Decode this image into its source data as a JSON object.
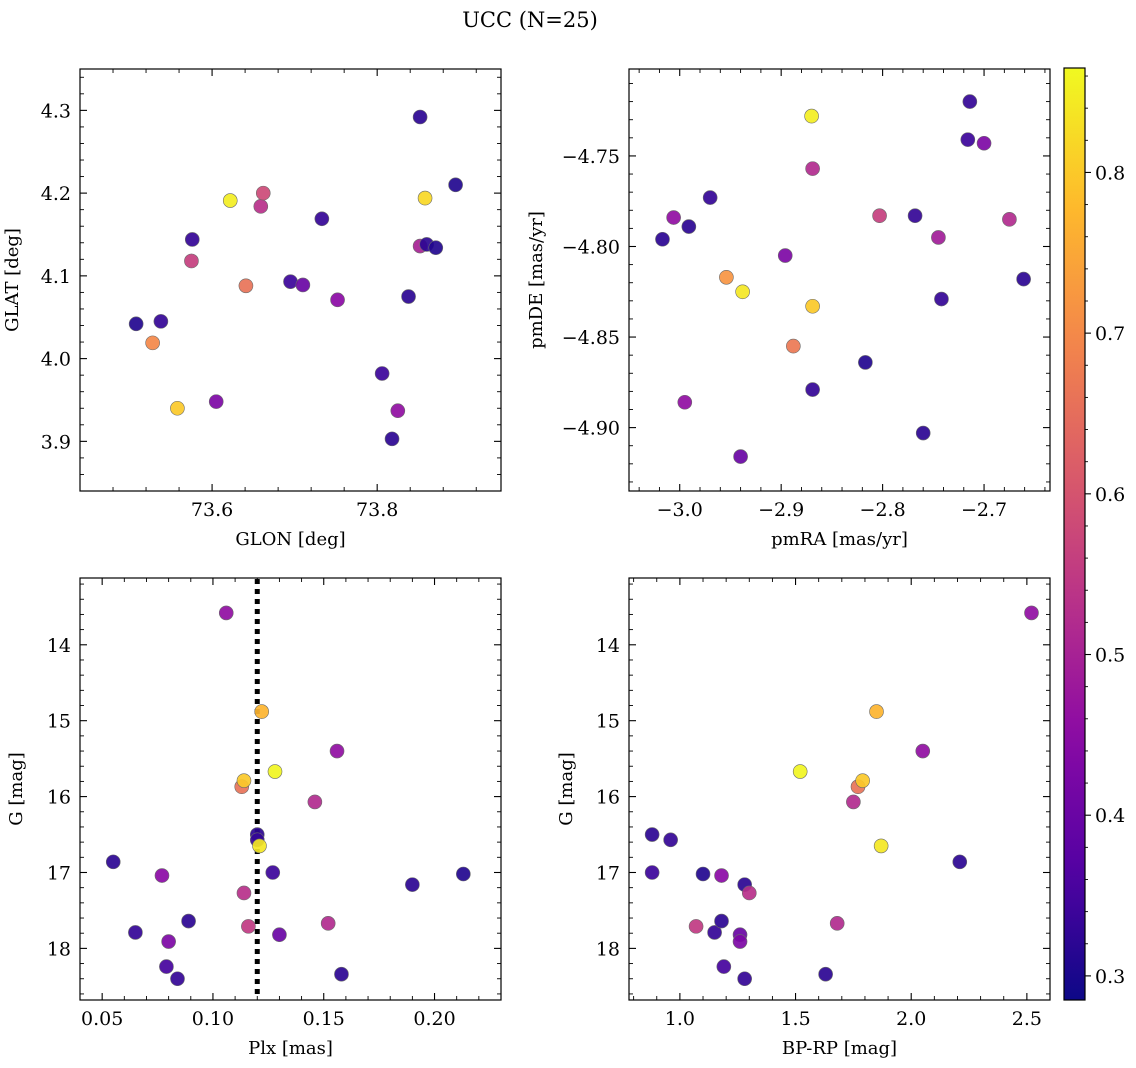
{
  "figure": {
    "title": "UCC (N=25)"
  },
  "colors": {
    "colormap": "plasma",
    "marker_edge": "#6b6b6b",
    "frame": "#000000",
    "reference_line": "#000000"
  },
  "colorbar": {
    "label": "",
    "range": [
      0.285,
      0.865
    ],
    "ticks": [
      0.3,
      0.4,
      0.5,
      0.6,
      0.7,
      0.8
    ],
    "tick_labels": [
      "0.3",
      "0.4",
      "0.5",
      "0.6",
      "0.7",
      "0.8"
    ]
  },
  "chart_data": [
    {
      "type": "scatter",
      "name": "glon-glat",
      "xlabel": "GLON [deg]",
      "ylabel": "GLAT [deg]",
      "xlim": [
        73.44,
        73.95
      ],
      "ylim": [
        3.84,
        4.35
      ],
      "x_ticks": [
        73.6,
        73.8
      ],
      "x_tick_labels": [
        "73.6",
        "73.8"
      ],
      "y_ticks": [
        3.9,
        4.0,
        4.1,
        4.2,
        4.3
      ],
      "y_tick_labels": [
        "3.9",
        "4.0",
        "4.1",
        "4.2",
        "4.3"
      ],
      "y_inverted": false,
      "grid": false,
      "points": [
        {
          "x": 73.508,
          "y": 4.042,
          "c": 0.31
        },
        {
          "x": 73.538,
          "y": 4.045,
          "c": 0.33
        },
        {
          "x": 73.528,
          "y": 4.019,
          "c": 0.7
        },
        {
          "x": 73.558,
          "y": 3.94,
          "c": 0.8
        },
        {
          "x": 73.576,
          "y": 4.144,
          "c": 0.33
        },
        {
          "x": 73.575,
          "y": 4.118,
          "c": 0.56
        },
        {
          "x": 73.605,
          "y": 3.948,
          "c": 0.43
        },
        {
          "x": 73.622,
          "y": 4.191,
          "c": 0.85
        },
        {
          "x": 73.641,
          "y": 4.088,
          "c": 0.66
        },
        {
          "x": 73.659,
          "y": 4.184,
          "c": 0.53
        },
        {
          "x": 73.662,
          "y": 4.2,
          "c": 0.58
        },
        {
          "x": 73.695,
          "y": 4.093,
          "c": 0.34
        },
        {
          "x": 73.71,
          "y": 4.089,
          "c": 0.4
        },
        {
          "x": 73.733,
          "y": 4.169,
          "c": 0.33
        },
        {
          "x": 73.752,
          "y": 4.071,
          "c": 0.45
        },
        {
          "x": 73.806,
          "y": 3.982,
          "c": 0.34
        },
        {
          "x": 73.818,
          "y": 3.903,
          "c": 0.32
        },
        {
          "x": 73.825,
          "y": 3.937,
          "c": 0.46
        },
        {
          "x": 73.838,
          "y": 4.075,
          "c": 0.32
        },
        {
          "x": 73.852,
          "y": 4.292,
          "c": 0.32
        },
        {
          "x": 73.852,
          "y": 4.136,
          "c": 0.5
        },
        {
          "x": 73.858,
          "y": 4.194,
          "c": 0.82
        },
        {
          "x": 73.86,
          "y": 4.138,
          "c": 0.32
        },
        {
          "x": 73.871,
          "y": 4.134,
          "c": 0.31
        },
        {
          "x": 73.895,
          "y": 4.21,
          "c": 0.31
        }
      ]
    },
    {
      "type": "scatter",
      "name": "pmra-pmde",
      "xlabel": "pmRA [mas/yr]",
      "ylabel": "pmDE [mas/yr]",
      "xlim": [
        -3.05,
        -2.635
      ],
      "ylim": [
        -4.935,
        -4.702
      ],
      "x_ticks": [
        -3.0,
        -2.9,
        -2.8,
        -2.7
      ],
      "x_tick_labels": [
        "−3.0",
        "−2.9",
        "−2.8",
        "−2.7"
      ],
      "y_ticks": [
        -4.9,
        -4.85,
        -4.8,
        -4.75
      ],
      "y_tick_labels": [
        "−4.90",
        "−4.85",
        "−4.80",
        "−4.75"
      ],
      "y_inverted": false,
      "grid": false,
      "points": [
        {
          "x": -3.017,
          "y": -4.796,
          "c": 0.32
        },
        {
          "x": -3.006,
          "y": -4.784,
          "c": 0.46
        },
        {
          "x": -2.995,
          "y": -4.886,
          "c": 0.46
        },
        {
          "x": -2.991,
          "y": -4.789,
          "c": 0.32
        },
        {
          "x": -2.97,
          "y": -4.773,
          "c": 0.33
        },
        {
          "x": -2.954,
          "y": -4.817,
          "c": 0.72
        },
        {
          "x": -2.94,
          "y": -4.916,
          "c": 0.4
        },
        {
          "x": -2.938,
          "y": -4.825,
          "c": 0.84
        },
        {
          "x": -2.896,
          "y": -4.805,
          "c": 0.43
        },
        {
          "x": -2.888,
          "y": -4.855,
          "c": 0.67
        },
        {
          "x": -2.87,
          "y": -4.728,
          "c": 0.85
        },
        {
          "x": -2.869,
          "y": -4.757,
          "c": 0.52
        },
        {
          "x": -2.869,
          "y": -4.833,
          "c": 0.8
        },
        {
          "x": -2.869,
          "y": -4.879,
          "c": 0.33
        },
        {
          "x": -2.817,
          "y": -4.864,
          "c": 0.31
        },
        {
          "x": -2.803,
          "y": -4.783,
          "c": 0.56
        },
        {
          "x": -2.768,
          "y": -4.783,
          "c": 0.33
        },
        {
          "x": -2.76,
          "y": -4.903,
          "c": 0.32
        },
        {
          "x": -2.745,
          "y": -4.795,
          "c": 0.49
        },
        {
          "x": -2.742,
          "y": -4.829,
          "c": 0.33
        },
        {
          "x": -2.716,
          "y": -4.741,
          "c": 0.34
        },
        {
          "x": -2.714,
          "y": -4.72,
          "c": 0.33
        },
        {
          "x": -2.7,
          "y": -4.743,
          "c": 0.43
        },
        {
          "x": -2.675,
          "y": -4.785,
          "c": 0.52
        },
        {
          "x": -2.661,
          "y": -4.818,
          "c": 0.32
        }
      ]
    },
    {
      "type": "scatter",
      "name": "plx-g",
      "xlabel": "Plx [mas]",
      "ylabel": "G [mag]",
      "xlim": [
        0.04,
        0.23
      ],
      "ylim": [
        18.68,
        13.12
      ],
      "x_ticks": [
        0.05,
        0.1,
        0.15,
        0.2
      ],
      "x_tick_labels": [
        "0.05",
        "0.10",
        "0.15",
        "0.20"
      ],
      "y_ticks": [
        14,
        15,
        16,
        17,
        18
      ],
      "y_tick_labels": [
        "14",
        "15",
        "16",
        "17",
        "18"
      ],
      "y_inverted": true,
      "grid": false,
      "reference_line": {
        "x": 0.12,
        "style": "dotted"
      },
      "points": [
        {
          "x": 0.055,
          "y": 16.86,
          "c": 0.32
        },
        {
          "x": 0.065,
          "y": 17.79,
          "c": 0.33
        },
        {
          "x": 0.077,
          "y": 17.04,
          "c": 0.45
        },
        {
          "x": 0.079,
          "y": 18.24,
          "c": 0.35
        },
        {
          "x": 0.08,
          "y": 17.91,
          "c": 0.43
        },
        {
          "x": 0.084,
          "y": 18.4,
          "c": 0.33
        },
        {
          "x": 0.089,
          "y": 17.64,
          "c": 0.32
        },
        {
          "x": 0.106,
          "y": 13.58,
          "c": 0.46
        },
        {
          "x": 0.113,
          "y": 15.87,
          "c": 0.66
        },
        {
          "x": 0.114,
          "y": 17.27,
          "c": 0.53
        },
        {
          "x": 0.114,
          "y": 15.79,
          "c": 0.8
        },
        {
          "x": 0.116,
          "y": 17.71,
          "c": 0.55
        },
        {
          "x": 0.12,
          "y": 16.5,
          "c": 0.32
        },
        {
          "x": 0.12,
          "y": 16.57,
          "c": 0.33
        },
        {
          "x": 0.121,
          "y": 16.65,
          "c": 0.84
        },
        {
          "x": 0.122,
          "y": 14.88,
          "c": 0.77
        },
        {
          "x": 0.127,
          "y": 17.0,
          "c": 0.34
        },
        {
          "x": 0.128,
          "y": 15.67,
          "c": 0.86
        },
        {
          "x": 0.13,
          "y": 17.82,
          "c": 0.4
        },
        {
          "x": 0.146,
          "y": 16.07,
          "c": 0.52
        },
        {
          "x": 0.152,
          "y": 17.67,
          "c": 0.52
        },
        {
          "x": 0.156,
          "y": 15.4,
          "c": 0.46
        },
        {
          "x": 0.158,
          "y": 18.34,
          "c": 0.32
        },
        {
          "x": 0.19,
          "y": 17.16,
          "c": 0.32
        },
        {
          "x": 0.213,
          "y": 17.02,
          "c": 0.31
        }
      ]
    },
    {
      "type": "scatter",
      "name": "bprp-g",
      "xlabel": "BP-RP [mag]",
      "ylabel": "G [mag]",
      "xlim": [
        0.78,
        2.6
      ],
      "ylim": [
        18.68,
        13.12
      ],
      "x_ticks": [
        1.0,
        1.5,
        2.0,
        2.5
      ],
      "x_tick_labels": [
        "1.0",
        "1.5",
        "2.0",
        "2.5"
      ],
      "y_ticks": [
        14,
        15,
        16,
        17,
        18
      ],
      "y_tick_labels": [
        "14",
        "15",
        "16",
        "17",
        "18"
      ],
      "y_inverted": true,
      "grid": false,
      "points": [
        {
          "x": 0.88,
          "y": 16.5,
          "c": 0.32
        },
        {
          "x": 0.88,
          "y": 17.0,
          "c": 0.34
        },
        {
          "x": 0.96,
          "y": 16.57,
          "c": 0.33
        },
        {
          "x": 1.07,
          "y": 17.71,
          "c": 0.55
        },
        {
          "x": 1.1,
          "y": 17.02,
          "c": 0.31
        },
        {
          "x": 1.15,
          "y": 17.79,
          "c": 0.33
        },
        {
          "x": 1.18,
          "y": 17.04,
          "c": 0.45
        },
        {
          "x": 1.18,
          "y": 17.64,
          "c": 0.32
        },
        {
          "x": 1.19,
          "y": 18.24,
          "c": 0.35
        },
        {
          "x": 1.26,
          "y": 17.82,
          "c": 0.4
        },
        {
          "x": 1.26,
          "y": 17.91,
          "c": 0.43
        },
        {
          "x": 1.28,
          "y": 17.16,
          "c": 0.32
        },
        {
          "x": 1.28,
          "y": 18.4,
          "c": 0.33
        },
        {
          "x": 1.3,
          "y": 17.27,
          "c": 0.53
        },
        {
          "x": 1.52,
          "y": 15.67,
          "c": 0.86
        },
        {
          "x": 1.63,
          "y": 18.34,
          "c": 0.32
        },
        {
          "x": 1.68,
          "y": 17.67,
          "c": 0.52
        },
        {
          "x": 1.75,
          "y": 16.07,
          "c": 0.52
        },
        {
          "x": 1.77,
          "y": 15.87,
          "c": 0.66
        },
        {
          "x": 1.79,
          "y": 15.79,
          "c": 0.8
        },
        {
          "x": 1.85,
          "y": 14.88,
          "c": 0.77
        },
        {
          "x": 1.87,
          "y": 16.65,
          "c": 0.84
        },
        {
          "x": 2.05,
          "y": 15.4,
          "c": 0.46
        },
        {
          "x": 2.21,
          "y": 16.86,
          "c": 0.32
        },
        {
          "x": 2.52,
          "y": 13.58,
          "c": 0.46
        }
      ]
    }
  ]
}
